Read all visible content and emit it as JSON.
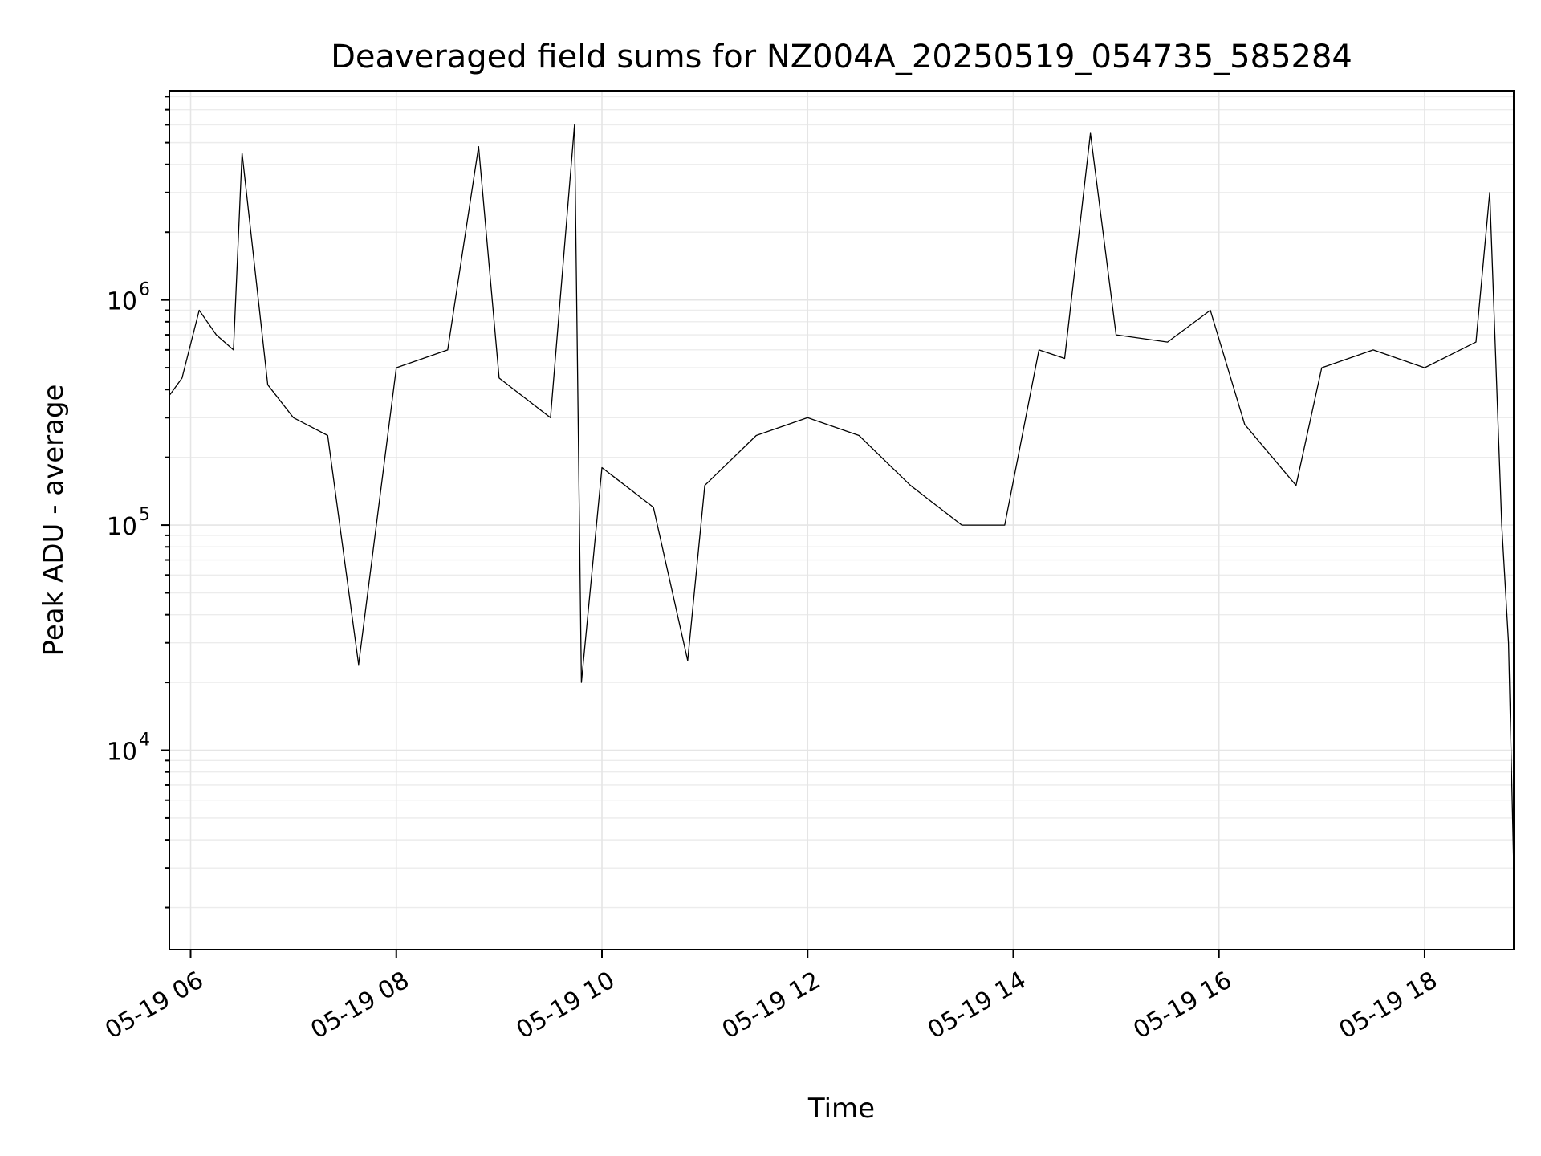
{
  "chart_data": {
    "type": "line",
    "title": "Deaveraged field sums for NZ004A_20250519_054735_585284",
    "xlabel": "Time",
    "ylabel": "Peak ADU - average",
    "x_range": [
      "2025-05-19T05:47:35",
      "2025-05-19T18:52:00"
    ],
    "y_scale": "log",
    "ylim": [
      1300,
      8500000
    ],
    "grid": true,
    "x_ticks": [
      {
        "value": "2025-05-19T06:00:00",
        "label": "05-19 06"
      },
      {
        "value": "2025-05-19T08:00:00",
        "label": "05-19 08"
      },
      {
        "value": "2025-05-19T10:00:00",
        "label": "05-19 10"
      },
      {
        "value": "2025-05-19T12:00:00",
        "label": "05-19 12"
      },
      {
        "value": "2025-05-19T14:00:00",
        "label": "05-19 14"
      },
      {
        "value": "2025-05-19T16:00:00",
        "label": "05-19 16"
      },
      {
        "value": "2025-05-19T18:00:00",
        "label": "05-19 18"
      }
    ],
    "y_ticks": [
      {
        "value": 10000,
        "base": "10",
        "exp": "4"
      },
      {
        "value": 100000,
        "base": "10",
        "exp": "5"
      },
      {
        "value": 1000000,
        "base": "10",
        "exp": "6"
      }
    ],
    "series": [
      {
        "color": "#000000",
        "x": [
          "2025-05-19T05:48:00",
          "2025-05-19T05:55:00",
          "2025-05-19T06:05:00",
          "2025-05-19T06:15:00",
          "2025-05-19T06:25:00",
          "2025-05-19T06:30:00",
          "2025-05-19T06:45:00",
          "2025-05-19T07:00:00",
          "2025-05-19T07:20:00",
          "2025-05-19T07:38:00",
          "2025-05-19T08:00:00",
          "2025-05-19T08:30:00",
          "2025-05-19T08:48:00",
          "2025-05-19T09:00:00",
          "2025-05-19T09:30:00",
          "2025-05-19T09:44:00",
          "2025-05-19T09:48:00",
          "2025-05-19T10:00:00",
          "2025-05-19T10:30:00",
          "2025-05-19T10:50:00",
          "2025-05-19T11:00:00",
          "2025-05-19T11:30:00",
          "2025-05-19T12:00:00",
          "2025-05-19T12:30:00",
          "2025-05-19T13:00:00",
          "2025-05-19T13:30:00",
          "2025-05-19T13:55:00",
          "2025-05-19T14:15:00",
          "2025-05-19T14:30:00",
          "2025-05-19T14:45:00",
          "2025-05-19T15:00:00",
          "2025-05-19T15:30:00",
          "2025-05-19T15:55:00",
          "2025-05-19T16:15:00",
          "2025-05-19T16:45:00",
          "2025-05-19T17:00:00",
          "2025-05-19T17:30:00",
          "2025-05-19T18:00:00",
          "2025-05-19T18:30:00",
          "2025-05-19T18:38:00",
          "2025-05-19T18:45:00",
          "2025-05-19T18:49:00",
          "2025-05-19T18:52:00"
        ],
        "y": [
          380000,
          450000,
          900000,
          700000,
          600000,
          4500000,
          420000,
          300000,
          250000,
          24000,
          500000,
          600000,
          4800000,
          450000,
          300000,
          6000000,
          20000,
          180000,
          120000,
          25000,
          150000,
          250000,
          300000,
          250000,
          150000,
          100000,
          100000,
          600000,
          550000,
          5500000,
          700000,
          650000,
          900000,
          280000,
          150000,
          500000,
          600000,
          500000,
          650000,
          3000000,
          100000,
          30000,
          3000
        ]
      }
    ]
  }
}
